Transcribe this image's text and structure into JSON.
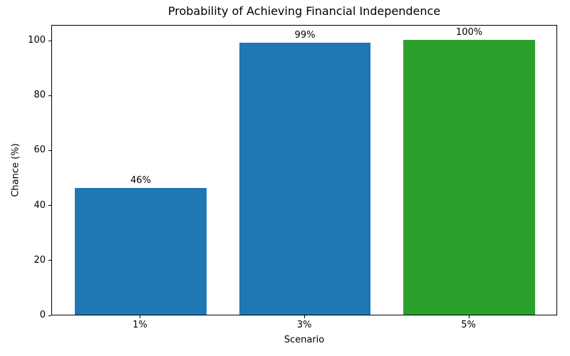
{
  "chart_data": {
    "type": "bar",
    "title": "Probability of Achieving Financial Independence",
    "xlabel": "Scenario",
    "ylabel": "Chance (%)",
    "categories": [
      "1%",
      "3%",
      "5%"
    ],
    "values": [
      46,
      99,
      100
    ],
    "bar_labels": [
      "46%",
      "99%",
      "100%"
    ],
    "bar_colors": [
      "#1f77b4",
      "#1f77b4",
      "#2ca02c"
    ],
    "yticks": [
      0,
      20,
      40,
      60,
      80,
      100
    ],
    "ylim": [
      0,
      105.7
    ],
    "grid": false,
    "legend": "none",
    "text_color": "#000000",
    "spine_color": "#000000",
    "background_color": "#ffffff"
  }
}
